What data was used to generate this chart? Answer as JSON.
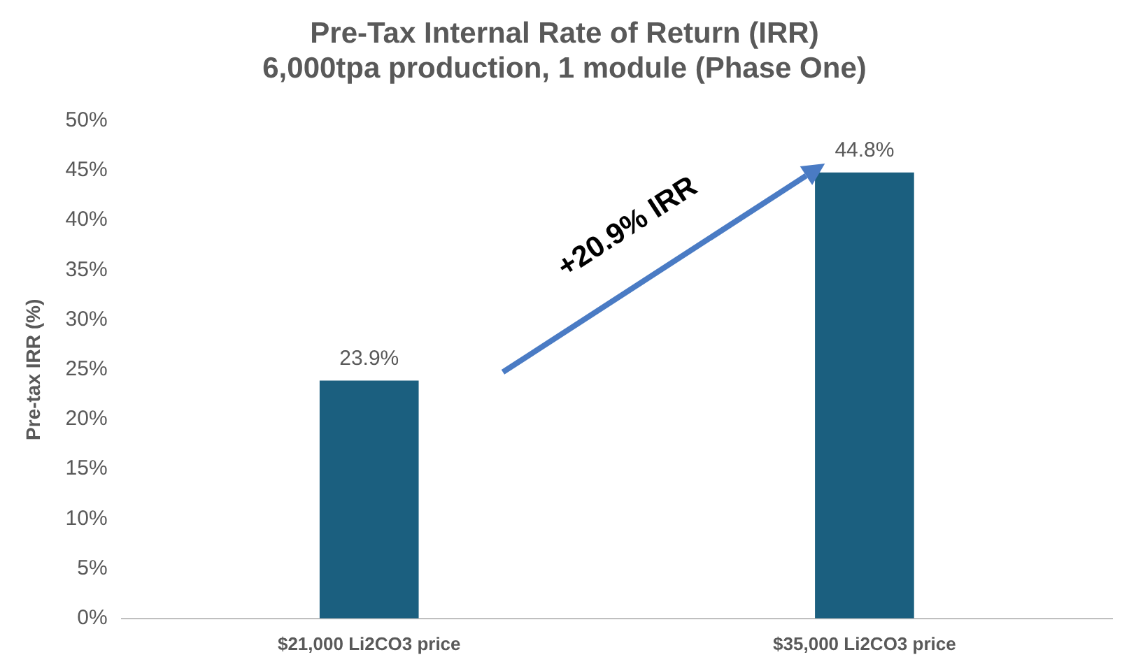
{
  "chart_data": {
    "type": "bar",
    "title": "Pre-Tax Internal Rate of Return (IRR)\n6,000tpa production, 1 module (Phase One)",
    "ylabel": "Pre-tax IRR (%)",
    "categories": [
      "$21,000 Li2CO3 price",
      "$35,000 Li2CO3 price"
    ],
    "values": [
      23.9,
      44.8
    ],
    "color": "#1b5f7f",
    "value_labels": [
      "23.9%",
      "44.8%"
    ],
    "ylim": [
      0,
      50
    ],
    "yticks": [
      {
        "value": 0,
        "label": "0%"
      },
      {
        "value": 5,
        "label": "5%"
      },
      {
        "value": 10,
        "label": "10%"
      },
      {
        "value": 15,
        "label": "15%"
      },
      {
        "value": 20,
        "label": "20%"
      },
      {
        "value": 25,
        "label": "25%"
      },
      {
        "value": 30,
        "label": "30%"
      },
      {
        "value": 35,
        "label": "35%"
      },
      {
        "value": 40,
        "label": "40%"
      },
      {
        "value": 45,
        "label": "45%"
      },
      {
        "value": 50,
        "label": "50%"
      }
    ],
    "annotations": [
      "+20.9% IRR"
    ],
    "grid": false,
    "legend": false
  }
}
